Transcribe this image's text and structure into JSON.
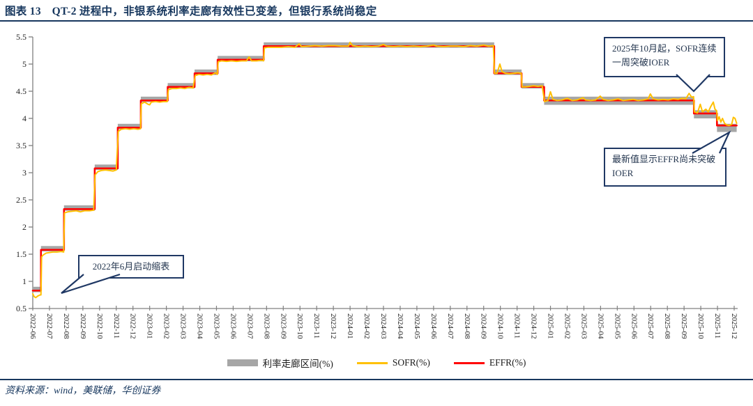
{
  "header": {
    "title": "图表 13　QT-2 进程中，非银系统利率走廊有效性已变差，但银行系统尚稳定"
  },
  "source": {
    "text": "资料来源：wind，美联储，华创证券"
  },
  "legend": [
    {
      "label": "利率走廊区间(%)",
      "type": "band",
      "color": "#A6A6A6"
    },
    {
      "label": "SOFR(%)",
      "type": "line",
      "color": "#FFC000"
    },
    {
      "label": "EFFR(%)",
      "type": "line",
      "color": "#FF0000"
    }
  ],
  "annotations": [
    {
      "id": "sofr-breaks-ioer",
      "text": "2025年10月起，SOFR连续一周突破IOER"
    },
    {
      "id": "effr-not-break",
      "text": "最新值显示EFFR尚未突破IOER"
    },
    {
      "id": "qt-start",
      "text": "2022年6月启动缩表"
    }
  ],
  "chart_data": {
    "type": "line",
    "title": "QT-2 进程中，非银系统利率走廊有效性已变差，但银行系统尚稳定",
    "xlabel": "",
    "ylabel": "",
    "ylim": [
      0.5,
      5.5
    ],
    "y_ticks": [
      0.5,
      1,
      1.5,
      2,
      2.5,
      3,
      3.5,
      4,
      4.5,
      5,
      5.5
    ],
    "grid": false,
    "legend_position": "bottom",
    "x_unit": "months since 2022-06",
    "x_tick_labels": [
      "2022-06",
      "2022-07",
      "2022-08",
      "2022-09",
      "2022-10",
      "2022-11",
      "2022-12",
      "2023-01",
      "2023-02",
      "2023-03",
      "2023-04",
      "2023-05",
      "2023-06",
      "2023-07",
      "2023-08",
      "2023-09",
      "2023-10",
      "2023-11",
      "2023-12",
      "2024-01",
      "2024-02",
      "2024-03",
      "2024-04",
      "2024-05",
      "2024-06",
      "2024-07",
      "2024-08",
      "2024-09",
      "2024-10",
      "2024-11",
      "2024-12",
      "2025-01",
      "2025-02",
      "2025-03",
      "2025-04",
      "2025-05",
      "2025-06",
      "2025-07",
      "2025-08",
      "2025-09",
      "2025-10",
      "2025-11",
      "2025-12"
    ],
    "series": [
      {
        "name": "利率走廊区间(%)",
        "type": "band",
        "color": "#A6A6A6",
        "steps": [
          {
            "from": 0.0,
            "to": 0.49,
            "bottom": 0.8,
            "top": 0.9
          },
          {
            "from": 0.49,
            "to": 1.87,
            "bottom": 1.55,
            "top": 1.65
          },
          {
            "from": 1.87,
            "to": 3.71,
            "bottom": 2.3,
            "top": 2.4
          },
          {
            "from": 3.71,
            "to": 5.09,
            "bottom": 3.05,
            "top": 3.15
          },
          {
            "from": 5.09,
            "to": 6.47,
            "bottom": 3.8,
            "top": 3.9
          },
          {
            "from": 6.47,
            "to": 8.08,
            "bottom": 4.3,
            "top": 4.4
          },
          {
            "from": 8.08,
            "to": 9.69,
            "bottom": 4.55,
            "top": 4.65
          },
          {
            "from": 9.69,
            "to": 11.07,
            "bottom": 4.8,
            "top": 4.9
          },
          {
            "from": 11.07,
            "to": 13.83,
            "bottom": 5.05,
            "top": 5.15
          },
          {
            "from": 13.83,
            "to": 27.63,
            "bottom": 5.3,
            "top": 5.4
          },
          {
            "from": 27.63,
            "to": 29.27,
            "bottom": 4.8,
            "top": 4.9
          },
          {
            "from": 29.27,
            "to": 30.62,
            "bottom": 4.55,
            "top": 4.65
          },
          {
            "from": 30.62,
            "to": 39.59,
            "bottom": 4.25,
            "top": 4.4
          },
          {
            "from": 39.59,
            "to": 40.97,
            "bottom": 4.0,
            "top": 4.15
          },
          {
            "from": 40.97,
            "to": 42.15,
            "bottom": 3.75,
            "top": 3.9
          }
        ]
      },
      {
        "name": "EFFR(%)",
        "type": "step-line",
        "color": "#FF0000",
        "steps": [
          {
            "from": 0.0,
            "to": 0.49,
            "value": 0.83
          },
          {
            "from": 0.49,
            "to": 1.87,
            "value": 1.58
          },
          {
            "from": 1.87,
            "to": 3.71,
            "value": 2.33
          },
          {
            "from": 3.71,
            "to": 5.09,
            "value": 3.08
          },
          {
            "from": 5.09,
            "to": 6.47,
            "value": 3.83
          },
          {
            "from": 6.47,
            "to": 8.08,
            "value": 4.33
          },
          {
            "from": 8.08,
            "to": 9.69,
            "value": 4.58
          },
          {
            "from": 9.69,
            "to": 11.07,
            "value": 4.83
          },
          {
            "from": 11.07,
            "to": 13.83,
            "value": 5.08
          },
          {
            "from": 13.83,
            "to": 27.63,
            "value": 5.33
          },
          {
            "from": 27.63,
            "to": 29.27,
            "value": 4.83
          },
          {
            "from": 29.27,
            "to": 30.62,
            "value": 4.58
          },
          {
            "from": 30.62,
            "to": 39.59,
            "value": 4.33
          },
          {
            "from": 39.59,
            "to": 40.97,
            "value": 4.09
          },
          {
            "from": 40.97,
            "to": 42.15,
            "value": 3.87
          }
        ]
      },
      {
        "name": "SOFR(%)",
        "type": "line",
        "color": "#FFC000",
        "points": [
          [
            0,
            0.77
          ],
          [
            0.08,
            0.72
          ],
          [
            0.18,
            0.7
          ],
          [
            0.3,
            0.73
          ],
          [
            0.44,
            0.75
          ],
          [
            0.49,
            0.75
          ],
          [
            0.53,
            1.45
          ],
          [
            0.6,
            1.48
          ],
          [
            0.8,
            1.52
          ],
          [
            1.0,
            1.53
          ],
          [
            1.2,
            1.54
          ],
          [
            1.45,
            1.54
          ],
          [
            1.7,
            1.55
          ],
          [
            1.85,
            1.54
          ],
          [
            1.9,
            2.26
          ],
          [
            2.1,
            2.28
          ],
          [
            2.35,
            2.29
          ],
          [
            2.6,
            2.3
          ],
          [
            2.85,
            2.28
          ],
          [
            3.1,
            2.3
          ],
          [
            3.4,
            2.3
          ],
          [
            3.65,
            2.31
          ],
          [
            3.73,
            2.96
          ],
          [
            3.9,
            3.02
          ],
          [
            4.1,
            3.04
          ],
          [
            4.35,
            3.05
          ],
          [
            4.6,
            3.04
          ],
          [
            4.8,
            3.03
          ],
          [
            5.0,
            3.05
          ],
          [
            5.12,
            3.76
          ],
          [
            5.3,
            3.8
          ],
          [
            5.55,
            3.81
          ],
          [
            5.8,
            3.8
          ],
          [
            6.05,
            3.81
          ],
          [
            6.3,
            3.8
          ],
          [
            6.45,
            3.81
          ],
          [
            6.5,
            4.27
          ],
          [
            6.7,
            4.3
          ],
          [
            6.9,
            4.26
          ],
          [
            7.0,
            4.25
          ],
          [
            7.1,
            4.3
          ],
          [
            7.35,
            4.31
          ],
          [
            7.6,
            4.3
          ],
          [
            7.85,
            4.31
          ],
          [
            8.05,
            4.31
          ],
          [
            8.12,
            4.53
          ],
          [
            8.35,
            4.55
          ],
          [
            8.6,
            4.55
          ],
          [
            8.85,
            4.56
          ],
          [
            9.1,
            4.55
          ],
          [
            9.35,
            4.57
          ],
          [
            9.6,
            4.56
          ],
          [
            9.73,
            4.79
          ],
          [
            9.95,
            4.81
          ],
          [
            10.2,
            4.8
          ],
          [
            10.45,
            4.81
          ],
          [
            10.7,
            4.8
          ],
          [
            10.95,
            4.84
          ],
          [
            11.05,
            4.81
          ],
          [
            11.1,
            5.04
          ],
          [
            11.3,
            5.06
          ],
          [
            11.6,
            5.05
          ],
          [
            11.9,
            5.06
          ],
          [
            12.2,
            5.05
          ],
          [
            12.5,
            5.06
          ],
          [
            12.8,
            5.06
          ],
          [
            12.95,
            5.13
          ],
          [
            13.1,
            5.06
          ],
          [
            13.4,
            5.06
          ],
          [
            13.7,
            5.07
          ],
          [
            13.82,
            5.06
          ],
          [
            13.87,
            5.3
          ],
          [
            14.1,
            5.31
          ],
          [
            14.5,
            5.31
          ],
          [
            14.9,
            5.31
          ],
          [
            15.3,
            5.32
          ],
          [
            15.7,
            5.31
          ],
          [
            15.95,
            5.37
          ],
          [
            16.1,
            5.32
          ],
          [
            16.5,
            5.33
          ],
          [
            16.9,
            5.34
          ],
          [
            17.3,
            5.33
          ],
          [
            17.7,
            5.34
          ],
          [
            18.1,
            5.34
          ],
          [
            18.5,
            5.33
          ],
          [
            18.9,
            5.33
          ],
          [
            19.0,
            5.4
          ],
          [
            19.15,
            5.34
          ],
          [
            19.5,
            5.32
          ],
          [
            19.9,
            5.33
          ],
          [
            20.3,
            5.32
          ],
          [
            20.7,
            5.33
          ],
          [
            21.0,
            5.36
          ],
          [
            21.2,
            5.33
          ],
          [
            21.6,
            5.32
          ],
          [
            22.0,
            5.33
          ],
          [
            22.4,
            5.32
          ],
          [
            22.8,
            5.33
          ],
          [
            23.2,
            5.32
          ],
          [
            23.6,
            5.33
          ],
          [
            24.0,
            5.35
          ],
          [
            24.2,
            5.33
          ],
          [
            24.6,
            5.32
          ],
          [
            25.0,
            5.33
          ],
          [
            25.4,
            5.33
          ],
          [
            25.8,
            5.32
          ],
          [
            26.2,
            5.34
          ],
          [
            26.6,
            5.33
          ],
          [
            27.0,
            5.35
          ],
          [
            27.3,
            5.33
          ],
          [
            27.58,
            5.34
          ],
          [
            27.65,
            4.83
          ],
          [
            27.8,
            4.83
          ],
          [
            27.97,
            5.0
          ],
          [
            28.1,
            4.86
          ],
          [
            28.3,
            4.83
          ],
          [
            28.55,
            4.82
          ],
          [
            28.8,
            4.83
          ],
          [
            29.05,
            4.84
          ],
          [
            29.25,
            4.83
          ],
          [
            29.3,
            4.58
          ],
          [
            29.5,
            4.58
          ],
          [
            29.75,
            4.59
          ],
          [
            30.0,
            4.6
          ],
          [
            30.25,
            4.59
          ],
          [
            30.5,
            4.6
          ],
          [
            30.65,
            4.31
          ],
          [
            30.85,
            4.33
          ],
          [
            31.0,
            4.49
          ],
          [
            31.15,
            4.35
          ],
          [
            31.4,
            4.33
          ],
          [
            31.7,
            4.34
          ],
          [
            32.0,
            4.37
          ],
          [
            32.3,
            4.33
          ],
          [
            32.6,
            4.34
          ],
          [
            32.95,
            4.38
          ],
          [
            33.1,
            4.34
          ],
          [
            33.4,
            4.33
          ],
          [
            33.7,
            4.34
          ],
          [
            33.98,
            4.41
          ],
          [
            34.15,
            4.35
          ],
          [
            34.45,
            4.33
          ],
          [
            34.75,
            4.34
          ],
          [
            35.05,
            4.36
          ],
          [
            35.35,
            4.33
          ],
          [
            35.65,
            4.34
          ],
          [
            35.95,
            4.35
          ],
          [
            36.25,
            4.33
          ],
          [
            36.55,
            4.34
          ],
          [
            36.85,
            4.36
          ],
          [
            36.98,
            4.45
          ],
          [
            37.15,
            4.36
          ],
          [
            37.45,
            4.34
          ],
          [
            37.75,
            4.35
          ],
          [
            38.05,
            4.34
          ],
          [
            38.35,
            4.36
          ],
          [
            38.65,
            4.35
          ],
          [
            38.9,
            4.37
          ],
          [
            39.1,
            4.36
          ],
          [
            39.3,
            4.46
          ],
          [
            39.45,
            4.39
          ],
          [
            39.57,
            4.4
          ],
          [
            39.62,
            4.12
          ],
          [
            39.8,
            4.1
          ],
          [
            39.97,
            4.26
          ],
          [
            40.1,
            4.12
          ],
          [
            40.3,
            4.17
          ],
          [
            40.45,
            4.12
          ],
          [
            40.6,
            4.22
          ],
          [
            40.75,
            4.3
          ],
          [
            40.85,
            4.17
          ],
          [
            40.95,
            4.14
          ],
          [
            41.0,
            3.96
          ],
          [
            41.1,
            4.03
          ],
          [
            41.2,
            3.93
          ],
          [
            41.3,
            4.0
          ],
          [
            41.42,
            3.91
          ],
          [
            41.55,
            3.88
          ],
          [
            41.7,
            3.87
          ],
          [
            41.85,
            3.89
          ],
          [
            41.95,
            4.02
          ],
          [
            42.05,
            4.0
          ],
          [
            42.15,
            3.91
          ]
        ]
      }
    ]
  }
}
